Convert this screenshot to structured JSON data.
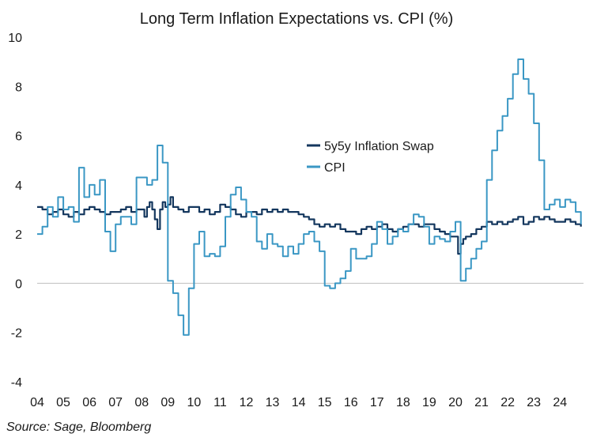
{
  "chart_data": {
    "type": "line",
    "title": "Long Term Inflation Expectations vs. CPI (%)",
    "xlabel": "",
    "ylabel": "",
    "xlim": [
      2004.0,
      2024.9
    ],
    "ylim": [
      -4,
      10
    ],
    "y_ticks": [
      -4,
      -2,
      0,
      2,
      4,
      6,
      8,
      10
    ],
    "x_ticks": [
      {
        "value": 2004,
        "label": "04"
      },
      {
        "value": 2005,
        "label": "05"
      },
      {
        "value": 2006,
        "label": "06"
      },
      {
        "value": 2007,
        "label": "07"
      },
      {
        "value": 2008,
        "label": "08"
      },
      {
        "value": 2009,
        "label": "09"
      },
      {
        "value": 2010,
        "label": "10"
      },
      {
        "value": 2011,
        "label": "11"
      },
      {
        "value": 2012,
        "label": "12"
      },
      {
        "value": 2013,
        "label": "13"
      },
      {
        "value": 2014,
        "label": "14"
      },
      {
        "value": 2015,
        "label": "15"
      },
      {
        "value": 2016,
        "label": "16"
      },
      {
        "value": 2017,
        "label": "17"
      },
      {
        "value": 2018,
        "label": "18"
      },
      {
        "value": 2019,
        "label": "19"
      },
      {
        "value": 2020,
        "label": "20"
      },
      {
        "value": 2021,
        "label": "21"
      },
      {
        "value": 2022,
        "label": "22"
      },
      {
        "value": 2023,
        "label": "23"
      },
      {
        "value": 2024,
        "label": "24"
      }
    ],
    "grid": false,
    "legend_position": "center-right",
    "series": [
      {
        "name": "5y5y Inflation Swap",
        "color": "#14375e",
        "line_width": 2.2,
        "x": [
          2004.0,
          2004.2,
          2004.4,
          2004.6,
          2004.8,
          2005.0,
          2005.2,
          2005.4,
          2005.6,
          2005.8,
          2006.0,
          2006.2,
          2006.4,
          2006.6,
          2006.8,
          2007.0,
          2007.2,
          2007.4,
          2007.6,
          2007.8,
          2008.0,
          2008.1,
          2008.2,
          2008.3,
          2008.4,
          2008.5,
          2008.6,
          2008.7,
          2008.8,
          2008.9,
          2009.0,
          2009.1,
          2009.2,
          2009.4,
          2009.6,
          2009.8,
          2010.0,
          2010.2,
          2010.4,
          2010.6,
          2010.8,
          2011.0,
          2011.2,
          2011.4,
          2011.6,
          2011.8,
          2012.0,
          2012.2,
          2012.4,
          2012.6,
          2012.8,
          2013.0,
          2013.2,
          2013.4,
          2013.6,
          2013.8,
          2014.0,
          2014.2,
          2014.4,
          2014.6,
          2014.8,
          2015.0,
          2015.2,
          2015.4,
          2015.6,
          2015.8,
          2016.0,
          2016.2,
          2016.4,
          2016.6,
          2016.8,
          2017.0,
          2017.2,
          2017.4,
          2017.6,
          2017.8,
          2018.0,
          2018.2,
          2018.4,
          2018.6,
          2018.8,
          2019.0,
          2019.2,
          2019.4,
          2019.6,
          2019.8,
          2020.0,
          2020.1,
          2020.2,
          2020.3,
          2020.4,
          2020.6,
          2020.8,
          2021.0,
          2021.2,
          2021.4,
          2021.6,
          2021.8,
          2022.0,
          2022.2,
          2022.4,
          2022.6,
          2022.8,
          2023.0,
          2023.2,
          2023.4,
          2023.6,
          2023.8,
          2024.0,
          2024.2,
          2024.4,
          2024.6,
          2024.8
        ],
        "y": [
          3.1,
          3.0,
          2.8,
          2.9,
          3.0,
          2.8,
          2.7,
          2.9,
          2.8,
          3.0,
          3.1,
          3.0,
          2.9,
          2.8,
          2.9,
          2.9,
          3.0,
          3.1,
          2.9,
          3.0,
          3.0,
          2.7,
          3.1,
          3.3,
          3.0,
          2.6,
          2.2,
          3.0,
          3.3,
          3.1,
          3.2,
          3.5,
          3.1,
          3.0,
          2.9,
          3.1,
          3.1,
          2.9,
          3.0,
          2.8,
          2.9,
          3.2,
          3.1,
          3.0,
          2.8,
          2.7,
          2.9,
          2.9,
          2.8,
          3.0,
          2.9,
          3.0,
          2.9,
          3.0,
          2.9,
          2.9,
          2.8,
          2.7,
          2.6,
          2.4,
          2.3,
          2.4,
          2.3,
          2.4,
          2.2,
          2.1,
          2.1,
          2.0,
          2.2,
          2.3,
          2.2,
          2.3,
          2.4,
          2.2,
          2.1,
          2.2,
          2.3,
          2.4,
          2.4,
          2.3,
          2.4,
          2.4,
          2.2,
          2.1,
          2.0,
          1.9,
          1.9,
          1.2,
          1.6,
          1.8,
          1.9,
          2.0,
          2.2,
          2.3,
          2.5,
          2.4,
          2.5,
          2.4,
          2.5,
          2.6,
          2.7,
          2.4,
          2.5,
          2.7,
          2.6,
          2.7,
          2.6,
          2.5,
          2.5,
          2.6,
          2.5,
          2.4,
          2.3
        ]
      },
      {
        "name": "CPI",
        "color": "#3a97c4",
        "line_width": 2.0,
        "x": [
          2004.0,
          2004.2,
          2004.4,
          2004.6,
          2004.8,
          2005.0,
          2005.2,
          2005.4,
          2005.6,
          2005.8,
          2006.0,
          2006.2,
          2006.4,
          2006.6,
          2006.8,
          2007.0,
          2007.2,
          2007.4,
          2007.6,
          2007.8,
          2008.0,
          2008.2,
          2008.4,
          2008.6,
          2008.8,
          2009.0,
          2009.2,
          2009.4,
          2009.6,
          2009.8,
          2010.0,
          2010.2,
          2010.4,
          2010.6,
          2010.8,
          2011.0,
          2011.2,
          2011.4,
          2011.6,
          2011.8,
          2012.0,
          2012.2,
          2012.4,
          2012.6,
          2012.8,
          2013.0,
          2013.2,
          2013.4,
          2013.6,
          2013.8,
          2014.0,
          2014.2,
          2014.4,
          2014.6,
          2014.8,
          2015.0,
          2015.2,
          2015.4,
          2015.6,
          2015.8,
          2016.0,
          2016.2,
          2016.4,
          2016.6,
          2016.8,
          2017.0,
          2017.2,
          2017.4,
          2017.6,
          2017.8,
          2018.0,
          2018.2,
          2018.4,
          2018.6,
          2018.8,
          2019.0,
          2019.2,
          2019.4,
          2019.6,
          2019.8,
          2020.0,
          2020.2,
          2020.4,
          2020.6,
          2020.8,
          2021.0,
          2021.2,
          2021.4,
          2021.6,
          2021.8,
          2022.0,
          2022.2,
          2022.4,
          2022.6,
          2022.8,
          2023.0,
          2023.2,
          2023.4,
          2023.6,
          2023.8,
          2024.0,
          2024.2,
          2024.4,
          2024.6,
          2024.8
        ],
        "y": [
          2.0,
          2.3,
          3.1,
          2.7,
          3.5,
          3.0,
          3.1,
          2.5,
          4.7,
          3.5,
          4.0,
          3.6,
          4.2,
          2.1,
          1.3,
          2.4,
          2.7,
          2.7,
          2.4,
          4.3,
          4.3,
          4.0,
          4.2,
          5.6,
          4.9,
          0.1,
          -0.4,
          -1.3,
          -2.1,
          -0.2,
          1.6,
          2.1,
          1.1,
          1.2,
          1.1,
          1.5,
          2.7,
          3.6,
          3.9,
          3.4,
          2.9,
          2.7,
          1.7,
          1.4,
          2.0,
          1.6,
          1.5,
          1.1,
          1.5,
          1.2,
          1.6,
          2.0,
          2.1,
          1.7,
          1.3,
          -0.1,
          -0.2,
          0.0,
          0.2,
          0.5,
          1.4,
          1.0,
          1.0,
          1.1,
          1.6,
          2.5,
          2.2,
          1.6,
          1.9,
          2.2,
          2.1,
          2.4,
          2.8,
          2.7,
          2.3,
          1.6,
          1.9,
          1.8,
          1.7,
          2.1,
          2.5,
          0.1,
          0.6,
          1.0,
          1.4,
          1.7,
          4.2,
          5.4,
          6.2,
          6.8,
          7.5,
          8.5,
          9.1,
          8.3,
          7.7,
          6.5,
          5.0,
          3.0,
          3.2,
          3.4,
          3.1,
          3.4,
          3.3,
          2.9,
          2.4
        ]
      }
    ]
  },
  "source_text": "Source: Sage, Bloomberg"
}
